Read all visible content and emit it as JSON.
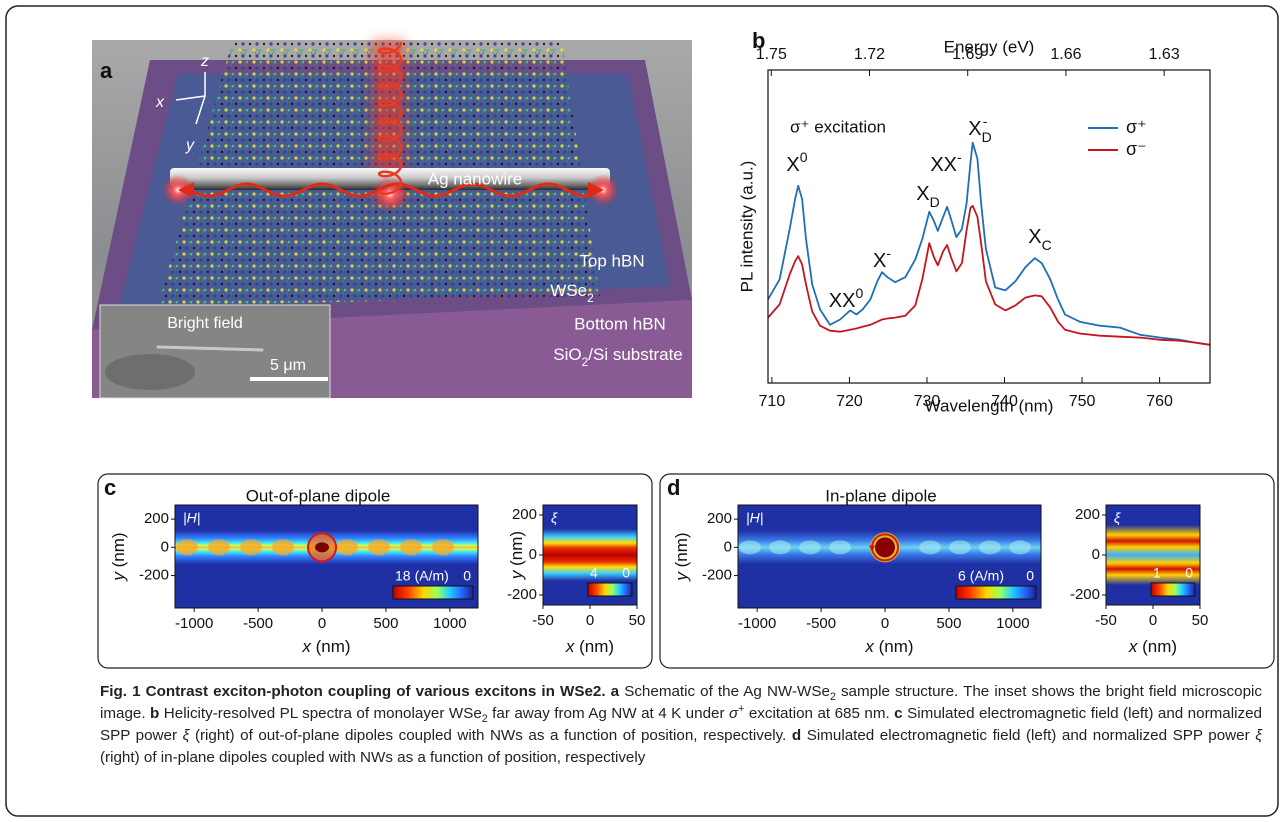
{
  "panel_a": {
    "label": "a",
    "axis_names": [
      "z",
      "x",
      "y"
    ],
    "nanowire": "Ag nanowire",
    "top_hbn": "Top hBN",
    "wse2": [
      "WSe",
      "2"
    ],
    "bottom_hbn": "Bottom hBN",
    "substrate": [
      "SiO",
      "2",
      "/Si substrate"
    ],
    "inset_title": "Bright field",
    "scale_bar": "5 μm"
  },
  "chart_data": {
    "type": "line",
    "panel_label": "b",
    "xlabel": "Wavelength (nm)",
    "x2label": "Energy (eV)",
    "ylabel": "PL intensity (a.u.)",
    "note": "σ⁺ excitation",
    "x": [
      709.5,
      711,
      712.3,
      713.0,
      713.4,
      713.9,
      714.4,
      715.2,
      716.2,
      717.5,
      718.8,
      720.1,
      720.9,
      721.7,
      722.7,
      723.6,
      724.2,
      724.9,
      725.9,
      727.2,
      728.5,
      729.4,
      730.3,
      730.9,
      731.4,
      732.1,
      732.6,
      733.1,
      733.8,
      734.5,
      735.1,
      735.6,
      735.9,
      736.5,
      737.0,
      737.6,
      738.8,
      740.1,
      741.4,
      742.7,
      743.9,
      744.8,
      745.9,
      746.9,
      747.8,
      749.7,
      752.3,
      754.9,
      757.5,
      760.1,
      762.6,
      764.6,
      766.5
    ],
    "series": [
      {
        "name": "σ⁺",
        "color": "#1f6fb4",
        "values": [
          0.267,
          0.331,
          0.492,
          0.588,
          0.63,
          0.588,
          0.46,
          0.315,
          0.235,
          0.186,
          0.203,
          0.232,
          0.219,
          0.235,
          0.267,
          0.325,
          0.354,
          0.338,
          0.322,
          0.338,
          0.395,
          0.46,
          0.547,
          0.518,
          0.486,
          0.531,
          0.563,
          0.524,
          0.466,
          0.492,
          0.572,
          0.701,
          0.768,
          0.717,
          0.572,
          0.428,
          0.305,
          0.296,
          0.325,
          0.37,
          0.399,
          0.383,
          0.331,
          0.267,
          0.219,
          0.196,
          0.183,
          0.177,
          0.154,
          0.145,
          0.138,
          0.129,
          0.122
        ]
      },
      {
        "name": "σ⁻",
        "color": "#c4161c",
        "values": [
          0.209,
          0.251,
          0.347,
          0.389,
          0.405,
          0.379,
          0.315,
          0.228,
          0.183,
          0.167,
          0.164,
          0.17,
          0.174,
          0.18,
          0.186,
          0.196,
          0.203,
          0.206,
          0.209,
          0.215,
          0.248,
          0.331,
          0.447,
          0.402,
          0.376,
          0.421,
          0.441,
          0.402,
          0.357,
          0.383,
          0.486,
          0.559,
          0.566,
          0.531,
          0.444,
          0.325,
          0.251,
          0.232,
          0.248,
          0.273,
          0.28,
          0.277,
          0.241,
          0.196,
          0.17,
          0.158,
          0.151,
          0.148,
          0.145,
          0.138,
          0.135,
          0.129,
          0.122
        ]
      }
    ],
    "xlim": [
      709.5,
      766.5
    ],
    "xticks": [
      710,
      720,
      730,
      740,
      750,
      760
    ],
    "x2lim": [
      1.751,
      1.616
    ],
    "x2ticks": [
      1.75,
      1.72,
      1.69,
      1.66,
      1.63
    ],
    "ylim": [
      0,
      1
    ],
    "peak_labels": [
      {
        "text": "X",
        "sup": "0"
      },
      {
        "text": "XX",
        "sup": "0"
      },
      {
        "text": "X",
        "sup": "-"
      },
      {
        "text": "X",
        "sub": "D"
      },
      {
        "text": "XX",
        "sup": "-"
      },
      {
        "text": "X",
        "sub": "D",
        "sup": "-"
      },
      {
        "text": "X",
        "sub": "C"
      }
    ]
  },
  "panel_c": {
    "label": "c",
    "title": "Out-of-plane dipole",
    "main": {
      "field_label": "|H|",
      "xlabel": [
        "x",
        " (nm)"
      ],
      "ylabel": [
        "y",
        " (nm)"
      ],
      "xlim": [
        -1150,
        1220
      ],
      "xticks": [
        -1000,
        -500,
        0,
        500,
        1000
      ],
      "ylim": [
        -430,
        300
      ],
      "yticks": [
        200,
        0,
        -200
      ],
      "cbar": {
        "max": 18,
        "unit": "(A/m)",
        "min": 0
      }
    },
    "side": {
      "field_label": "ξ",
      "xlabel": [
        "x",
        " (nm)"
      ],
      "ylabel": [
        "y",
        " (nm)"
      ],
      "xlim": [
        -50,
        50
      ],
      "xticks": [
        -50,
        0,
        50
      ],
      "ylim": [
        -250,
        250
      ],
      "yticks": [
        200,
        0,
        -200
      ],
      "cbar": {
        "max": 4,
        "min": 0
      }
    }
  },
  "panel_d": {
    "label": "d",
    "title": "In-plane dipole",
    "main": {
      "field_label": "|H|",
      "xlabel": [
        "x",
        " (nm)"
      ],
      "ylabel": [
        "y",
        " (nm)"
      ],
      "xlim": [
        -1150,
        1220
      ],
      "xticks": [
        -1000,
        -500,
        0,
        500,
        1000
      ],
      "ylim": [
        -430,
        300
      ],
      "yticks": [
        200,
        0,
        -200
      ],
      "cbar": {
        "max": 6,
        "unit": "(A/m)",
        "min": 0
      }
    },
    "side": {
      "field_label": "ξ",
      "xlabel": [
        "x",
        " (nm)"
      ],
      "xlim": [
        -50,
        50
      ],
      "xticks": [
        -50,
        0,
        50
      ],
      "ylim": [
        -250,
        250
      ],
      "yticks": [
        200,
        0,
        -200
      ],
      "cbar": {
        "max": 1,
        "min": 0
      }
    }
  },
  "caption": {
    "parts": [
      "Fig. 1 Contrast exciton-photon coupling of various excitons in WSe2.",
      " a",
      " Schematic of the Ag NW-WSe",
      "2",
      " sample structure. The inset shows the bright field microscopic image. ",
      "b",
      " Helicity-resolved PL spectra of monolayer WSe",
      "2",
      " far away from Ag NW at 4 K under ",
      "σ",
      "+",
      " excitation at 685 nm. ",
      "c",
      " Simulated electromagnetic field (left) and normalized SPP power ",
      "ξ",
      " (right) of out-of-plane dipoles coupled with NWs as a function of position, respectively. ",
      "d",
      " Simulated electromagnetic field (left) and normalized SPP power ",
      "ξ",
      " (right) of in-plane dipoles coupled with NWs as a function of position, respectively"
    ]
  }
}
